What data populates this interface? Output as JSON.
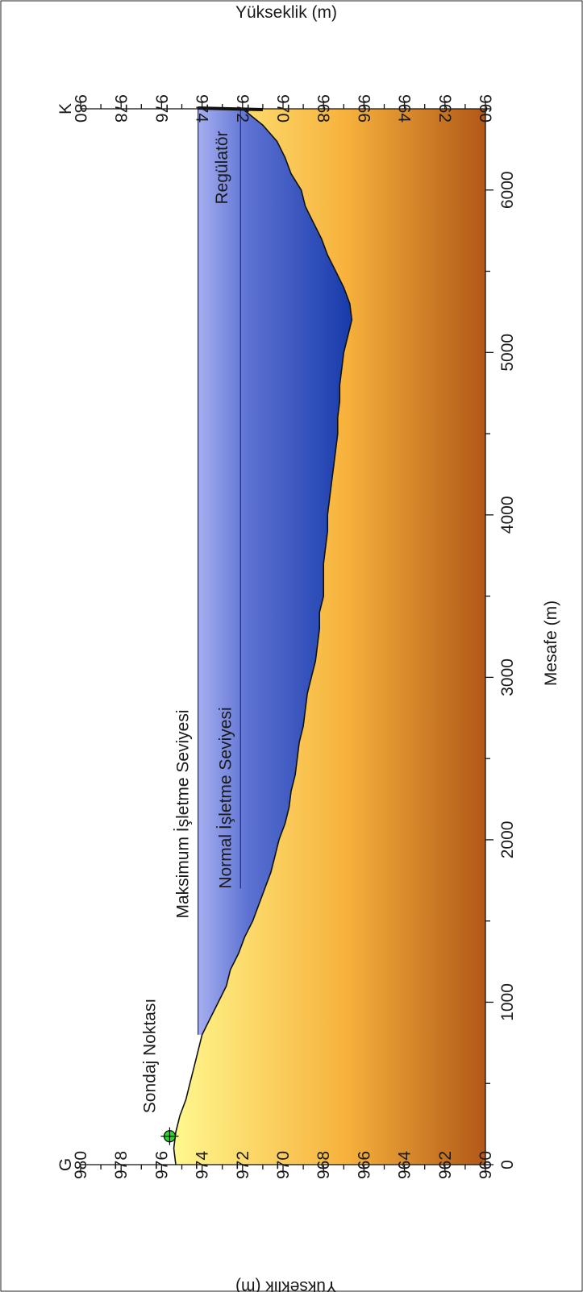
{
  "chart_data": {
    "type": "area",
    "orientation": "rotated-90-clockwise",
    "xlabel": "Mesafe (m)",
    "ylabel_left": "Yükseklik (m)",
    "ylabel_right": "Yükseklik (m)",
    "xlim": [
      0,
      6500
    ],
    "ylim": [
      960,
      980
    ],
    "x_ticks": [
      0,
      1000,
      2000,
      3000,
      4000,
      5000,
      6000
    ],
    "y_ticks": [
      960,
      962,
      964,
      966,
      968,
      970,
      972,
      974,
      976,
      978,
      980
    ],
    "end_labels": {
      "start": "G",
      "end": "K"
    },
    "ground_profile": {
      "x": [
        0,
        100,
        200,
        300,
        400,
        500,
        600,
        700,
        800,
        900,
        1000,
        1100,
        1200,
        1300,
        1400,
        1500,
        1600,
        1700,
        1800,
        1900,
        2000,
        2100,
        2200,
        2300,
        2400,
        2500,
        2600,
        2700,
        2800,
        2900,
        3000,
        3100,
        3200,
        3300,
        3400,
        3500,
        3600,
        3700,
        3800,
        3900,
        4000,
        4100,
        4200,
        4300,
        4400,
        4500,
        4600,
        4700,
        4800,
        4900,
        5000,
        5100,
        5200,
        5300,
        5400,
        5500,
        5600,
        5700,
        5800,
        5900,
        6000,
        6100,
        6200,
        6300,
        6400,
        6500
      ],
      "y": [
        975.3,
        975.4,
        975.3,
        975.1,
        974.8,
        974.6,
        974.4,
        974.2,
        974.0,
        973.6,
        973.2,
        972.8,
        972.6,
        972.2,
        971.9,
        971.5,
        971.2,
        970.9,
        970.6,
        970.4,
        970.2,
        969.9,
        969.7,
        969.6,
        969.4,
        969.3,
        969.2,
        969.0,
        968.9,
        968.8,
        968.6,
        968.4,
        968.3,
        968.2,
        968.2,
        968.0,
        968.0,
        968.0,
        967.9,
        967.8,
        967.8,
        967.7,
        967.6,
        967.5,
        967.4,
        967.3,
        967.3,
        967.2,
        967.2,
        967.1,
        967.0,
        966.8,
        966.6,
        966.7,
        967.0,
        967.4,
        967.8,
        968.1,
        968.5,
        968.9,
        969.1,
        969.6,
        969.9,
        970.3,
        971.0,
        972.0
      ]
    },
    "levels": [
      {
        "name": "Maksimum İşletme Seviyesi",
        "y": 974.2,
        "x_start": 800,
        "x_end": 6500
      },
      {
        "name": "Normal İşletme Seviyesi",
        "y": 972.1,
        "x_start": 1700,
        "x_end": 6500
      }
    ],
    "annotations": [
      {
        "label": "Sondaj Noktası",
        "x": 175,
        "y": 975.6,
        "marker": "green-circle-crosshair"
      },
      {
        "label": "Regülatör",
        "x": 6500,
        "y": 973
      }
    ],
    "colors": {
      "water_light": "#a4adf0",
      "water_mid": "#5d72d2",
      "water_deep": "#0f35a6",
      "ground_top": "#fff68c",
      "ground_mid": "#f7b13c",
      "ground_bottom": "#b15817",
      "marker": "#22dd22"
    }
  }
}
